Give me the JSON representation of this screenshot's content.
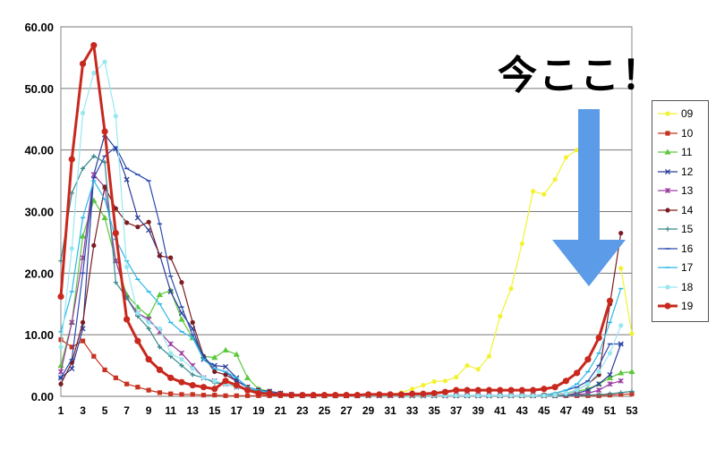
{
  "callout": {
    "text": "今ここ！"
  },
  "chart_data": {
    "type": "line",
    "x": [
      1,
      2,
      3,
      4,
      5,
      6,
      7,
      8,
      9,
      10,
      11,
      12,
      13,
      14,
      15,
      16,
      17,
      18,
      19,
      20,
      21,
      22,
      23,
      24,
      25,
      26,
      27,
      28,
      29,
      30,
      31,
      32,
      33,
      34,
      35,
      36,
      37,
      38,
      39,
      40,
      41,
      42,
      43,
      44,
      45,
      46,
      47,
      48,
      49,
      50,
      51,
      52,
      53
    ],
    "xticks": [
      1,
      3,
      5,
      7,
      9,
      11,
      13,
      15,
      17,
      19,
      21,
      23,
      25,
      27,
      29,
      31,
      33,
      35,
      37,
      39,
      41,
      43,
      45,
      47,
      49,
      51,
      53
    ],
    "ylim": [
      0,
      60
    ],
    "yticks": [
      "0.00",
      "10.00",
      "20.00",
      "30.00",
      "40.00",
      "50.00",
      "60.00"
    ],
    "grid": "horizontal",
    "legend_position": "right",
    "annotation": {
      "text": "今ここ！",
      "arrow_color": "#5b9be8",
      "arrow_direction": "down"
    },
    "series": [
      {
        "name": "09",
        "color": "#f2f232",
        "marker": "circle",
        "values": [
          null,
          null,
          null,
          null,
          null,
          null,
          null,
          null,
          null,
          null,
          null,
          null,
          null,
          null,
          null,
          null,
          null,
          null,
          null,
          null,
          null,
          null,
          null,
          null,
          null,
          null,
          null,
          null,
          null,
          null,
          0.3,
          0.6,
          1.2,
          1.8,
          2.4,
          2.5,
          3.1,
          5.0,
          4.4,
          6.5,
          13.0,
          17.5,
          24.8,
          33.3,
          32.8,
          35.2,
          38.8,
          40.0,
          null,
          null,
          null,
          20.8,
          10.2
        ]
      },
      {
        "name": "10",
        "color": "#c83220",
        "marker": "square",
        "values": [
          9.2,
          8.0,
          9.0,
          6.5,
          4.3,
          3.0,
          2.0,
          1.5,
          1.0,
          0.6,
          0.4,
          0.3,
          0.3,
          0.2,
          0.2,
          0.1,
          0.1,
          0.1,
          0.1,
          0.1,
          0.1,
          0.1,
          0.1,
          0.1,
          0.1,
          0.1,
          0.1,
          0.1,
          0.1,
          0.1,
          0.1,
          0.1,
          0.1,
          0.1,
          0.1,
          0.1,
          0.1,
          0.1,
          0.1,
          0.1,
          0.1,
          0.1,
          0.1,
          0.1,
          0.1,
          0.1,
          0.1,
          0.1,
          0.1,
          0.1,
          0.2,
          0.3,
          0.4
        ]
      },
      {
        "name": "11",
        "color": "#5cc83c",
        "marker": "triangle",
        "values": [
          5.0,
          12.0,
          26.0,
          31.8,
          29.0,
          22.0,
          16.5,
          14.5,
          13.0,
          16.5,
          17.2,
          12.5,
          9.5,
          6.5,
          6.3,
          7.5,
          6.8,
          3.0,
          1.2,
          0.8,
          0.5,
          0.3,
          0.2,
          0.1,
          0.1,
          0.1,
          0.1,
          0.1,
          0.1,
          0.1,
          0.1,
          0.1,
          0.1,
          0.1,
          0.1,
          0.1,
          0.1,
          0.1,
          0.1,
          0.1,
          0.1,
          0.1,
          0.1,
          0.1,
          0.2,
          0.3,
          0.5,
          0.8,
          1.2,
          2.0,
          3.0,
          3.8,
          4.0
        ]
      },
      {
        "name": "12",
        "color": "#2a3c9a",
        "marker": "x",
        "values": [
          3.0,
          4.5,
          11.0,
          36.0,
          42.5,
          40.2,
          35.2,
          29.0,
          27.0,
          23.0,
          17.0,
          13.5,
          11.0,
          6.0,
          5.0,
          4.8,
          3.0,
          1.5,
          1.0,
          0.8,
          0.5,
          0.3,
          0.2,
          0.1,
          0.1,
          0.1,
          0.1,
          0.1,
          0.1,
          0.1,
          0.1,
          0.1,
          0.1,
          0.1,
          0.1,
          0.1,
          0.1,
          0.1,
          0.1,
          0.1,
          0.1,
          0.1,
          0.1,
          0.1,
          0.1,
          0.1,
          0.2,
          0.5,
          1.0,
          2.0,
          3.5,
          8.5,
          null
        ]
      },
      {
        "name": "13",
        "color": "#9a3ca0",
        "marker": "star",
        "values": [
          4.0,
          12.0,
          22.5,
          36.0,
          34.0,
          22.0,
          16.0,
          13.5,
          12.5,
          10.5,
          8.5,
          7.0,
          5.0,
          3.0,
          2.5,
          2.0,
          1.5,
          1.0,
          0.6,
          0.4,
          0.3,
          0.2,
          0.1,
          0.1,
          0.1,
          0.1,
          0.1,
          0.1,
          0.1,
          0.1,
          0.1,
          0.1,
          0.1,
          0.1,
          0.1,
          0.1,
          0.1,
          0.1,
          0.1,
          0.1,
          0.1,
          0.1,
          0.1,
          0.1,
          0.1,
          0.1,
          0.2,
          0.3,
          0.5,
          1.0,
          2.0,
          2.5,
          null
        ]
      },
      {
        "name": "14",
        "color": "#7a1c20",
        "marker": "circle",
        "values": [
          2.0,
          5.5,
          12.0,
          24.5,
          34.0,
          30.5,
          28.2,
          27.5,
          28.3,
          22.8,
          22.5,
          18.5,
          12.0,
          6.5,
          4.0,
          3.5,
          2.5,
          1.5,
          1.0,
          0.8,
          0.5,
          0.3,
          0.2,
          0.1,
          0.1,
          0.1,
          0.1,
          0.1,
          0.1,
          0.1,
          0.1,
          0.1,
          0.1,
          0.1,
          0.1,
          0.1,
          0.1,
          0.1,
          0.1,
          0.1,
          0.1,
          0.1,
          0.1,
          0.1,
          0.2,
          0.3,
          0.5,
          1.0,
          2.0,
          3.5,
          15.0,
          26.5,
          null
        ]
      },
      {
        "name": "15",
        "color": "#3a8a8c",
        "marker": "plus",
        "values": [
          22.0,
          33.0,
          37.0,
          39.0,
          38.0,
          18.5,
          16.0,
          13.0,
          11.0,
          8.0,
          6.5,
          5.0,
          3.5,
          3.0,
          2.2,
          2.0,
          1.5,
          1.2,
          0.8,
          0.5,
          0.3,
          0.2,
          0.1,
          0.1,
          0.1,
          0.1,
          0.1,
          0.1,
          0.1,
          0.1,
          0.1,
          0.1,
          0.1,
          0.1,
          0.1,
          0.1,
          0.1,
          0.1,
          0.1,
          0.1,
          0.1,
          0.1,
          0.1,
          0.1,
          0.1,
          0.1,
          0.1,
          0.2,
          0.2,
          0.3,
          0.4,
          0.6,
          0.8
        ]
      },
      {
        "name": "16",
        "color": "#2a4ab0",
        "marker": "dash",
        "values": [
          3.0,
          6.0,
          20.0,
          35.5,
          39.0,
          40.5,
          37.0,
          36.0,
          35.0,
          28.0,
          19.5,
          14.5,
          10.0,
          6.5,
          4.5,
          4.0,
          2.5,
          1.5,
          1.0,
          0.8,
          0.5,
          0.3,
          0.2,
          0.1,
          0.1,
          0.1,
          0.1,
          0.1,
          0.1,
          0.1,
          0.1,
          0.1,
          0.1,
          0.1,
          0.1,
          0.1,
          0.1,
          0.1,
          0.1,
          0.1,
          0.1,
          0.1,
          0.1,
          0.1,
          0.2,
          0.5,
          1.0,
          1.5,
          2.5,
          5.0,
          8.5,
          8.5,
          null
        ]
      },
      {
        "name": "17",
        "color": "#2ab8e8",
        "marker": "dash",
        "values": [
          10.5,
          17.0,
          29.0,
          35.0,
          32.0,
          25.5,
          22.0,
          19.0,
          17.0,
          15.0,
          12.0,
          10.5,
          9.5,
          6.0,
          4.5,
          4.0,
          3.0,
          1.5,
          1.0,
          0.6,
          0.4,
          0.3,
          0.2,
          0.1,
          0.1,
          0.1,
          0.1,
          0.1,
          0.1,
          0.1,
          0.1,
          0.1,
          0.1,
          0.1,
          0.1,
          0.1,
          0.1,
          0.1,
          0.1,
          0.1,
          0.1,
          0.1,
          0.1,
          0.1,
          0.2,
          0.5,
          1.0,
          2.0,
          4.0,
          7.0,
          12.0,
          17.5,
          null
        ]
      },
      {
        "name": "18",
        "color": "#98e8f0",
        "marker": "circle",
        "values": [
          8.0,
          24.0,
          46.0,
          52.5,
          54.3,
          45.5,
          21.0,
          13.5,
          12.0,
          11.0,
          7.0,
          6.0,
          4.5,
          3.0,
          2.5,
          2.0,
          1.5,
          1.0,
          0.6,
          0.4,
          0.3,
          0.2,
          0.1,
          0.1,
          0.1,
          0.1,
          0.1,
          0.1,
          0.1,
          0.1,
          0.1,
          0.1,
          0.1,
          0.1,
          0.1,
          0.1,
          0.1,
          0.1,
          0.1,
          0.1,
          0.1,
          0.1,
          0.1,
          0.1,
          0.1,
          0.2,
          0.5,
          1.0,
          2.0,
          4.0,
          7.0,
          11.5,
          null
        ]
      },
      {
        "name": "19",
        "color": "#c8281e",
        "marker": "circle",
        "values": [
          16.2,
          38.5,
          54.0,
          57.0,
          43.0,
          26.5,
          12.5,
          9.0,
          6.0,
          4.3,
          3.0,
          2.3,
          1.8,
          1.5,
          1.2,
          2.5,
          1.8,
          1.0,
          0.5,
          0.4,
          0.3,
          0.2,
          0.2,
          0.2,
          0.2,
          0.2,
          0.2,
          0.2,
          0.3,
          0.3,
          0.3,
          0.3,
          0.4,
          0.4,
          0.5,
          0.7,
          1.0,
          1.0,
          1.0,
          1.0,
          1.0,
          1.0,
          1.0,
          1.0,
          1.2,
          1.5,
          2.5,
          3.8,
          6.0,
          9.5,
          15.5,
          null,
          null
        ]
      }
    ]
  }
}
